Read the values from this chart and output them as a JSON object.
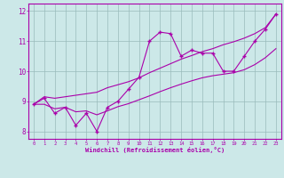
{
  "xlabel": "Windchill (Refroidissement éolien,°C)",
  "x_data": [
    0,
    1,
    2,
    3,
    4,
    5,
    6,
    7,
    8,
    9,
    10,
    11,
    12,
    13,
    14,
    15,
    16,
    17,
    18,
    19,
    20,
    21,
    22,
    23
  ],
  "y_main": [
    8.9,
    9.1,
    8.6,
    8.8,
    8.2,
    8.6,
    8.0,
    8.8,
    9.0,
    9.4,
    9.8,
    11.0,
    11.3,
    11.25,
    10.5,
    10.7,
    10.6,
    10.6,
    10.0,
    10.0,
    10.5,
    11.0,
    11.4,
    11.9
  ],
  "y_upper": [
    8.9,
    9.15,
    9.1,
    9.15,
    9.2,
    9.25,
    9.3,
    9.45,
    9.55,
    9.65,
    9.78,
    9.95,
    10.1,
    10.25,
    10.4,
    10.52,
    10.65,
    10.75,
    10.88,
    10.98,
    11.1,
    11.25,
    11.45,
    11.9
  ],
  "y_lower": [
    8.9,
    8.9,
    8.75,
    8.8,
    8.65,
    8.68,
    8.55,
    8.68,
    8.82,
    8.92,
    9.05,
    9.18,
    9.32,
    9.45,
    9.57,
    9.68,
    9.78,
    9.85,
    9.9,
    9.95,
    10.05,
    10.22,
    10.45,
    10.75
  ],
  "bg_color": "#cce8e8",
  "line_color": "#aa00aa",
  "grid_color": "#99bbbb",
  "ylim": [
    7.75,
    12.25
  ],
  "xlim": [
    -0.5,
    23.5
  ],
  "yticks": [
    8,
    9,
    10,
    11,
    12
  ],
  "xticks": [
    0,
    1,
    2,
    3,
    4,
    5,
    6,
    7,
    8,
    9,
    10,
    11,
    12,
    13,
    14,
    15,
    16,
    17,
    18,
    19,
    20,
    21,
    22,
    23
  ]
}
